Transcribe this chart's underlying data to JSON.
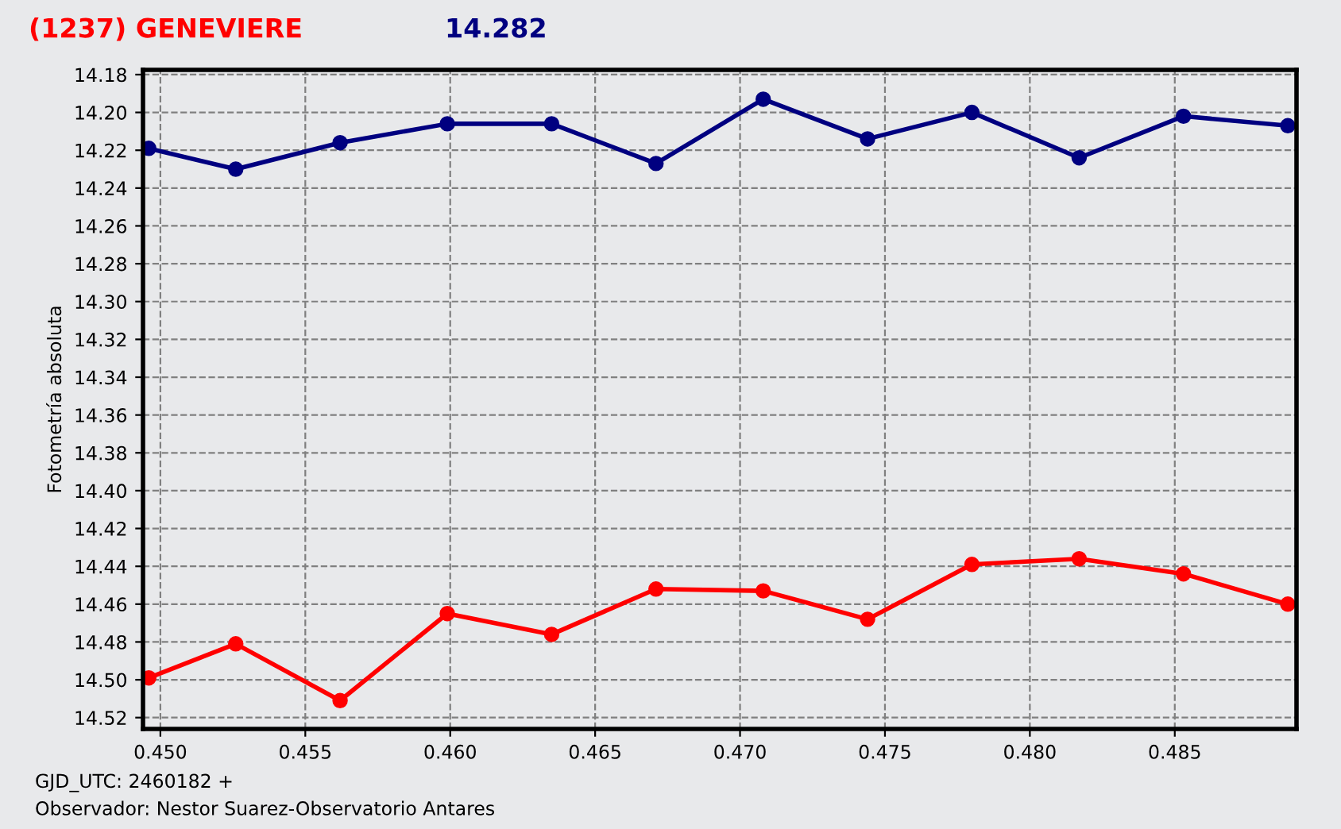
{
  "chart_data": {
    "type": "line",
    "title": "(1237) GENEVIERE",
    "subtitle": "14.282",
    "ylabel": "Fotometría absoluta",
    "annotations": [
      "GJD_UTC: 2460182 +",
      "Observador: Nestor Suarez-Observatorio Antares"
    ],
    "x": [
      0.4496,
      0.4526,
      0.4562,
      0.4599,
      0.4635,
      0.4671,
      0.4708,
      0.4744,
      0.478,
      0.4817,
      0.4853,
      0.4889
    ],
    "series": [
      {
        "color": "#000080",
        "values": [
          14.219,
          14.23,
          14.216,
          14.206,
          14.206,
          14.227,
          14.193,
          14.214,
          14.2,
          14.224,
          14.202,
          14.207
        ]
      },
      {
        "color": "#ff0000",
        "values": [
          14.499,
          14.481,
          14.511,
          14.465,
          14.476,
          14.452,
          14.453,
          14.468,
          14.439,
          14.436,
          14.444,
          14.46
        ]
      }
    ],
    "xlim": [
      0.4494,
      0.4892
    ],
    "ylim": [
      14.526,
      14.1775
    ],
    "xticks": [
      {
        "value": 0.45,
        "label": "0.450"
      },
      {
        "value": 0.455,
        "label": "0.455"
      },
      {
        "value": 0.46,
        "label": "0.460"
      },
      {
        "value": 0.465,
        "label": "0.465"
      },
      {
        "value": 0.47,
        "label": "0.470"
      },
      {
        "value": 0.475,
        "label": "0.475"
      },
      {
        "value": 0.48,
        "label": "0.480"
      },
      {
        "value": 0.485,
        "label": "0.485"
      }
    ],
    "yticks": [
      14.18,
      {
        "value": 14.2,
        "label": "14.20"
      },
      14.22,
      14.24,
      14.26,
      14.28,
      {
        "value": 14.3,
        "label": "14.30"
      },
      14.32,
      14.34,
      14.36,
      14.38,
      {
        "value": 14.4,
        "label": "14.40"
      },
      14.42,
      14.44,
      14.46,
      14.48,
      {
        "value": 14.5,
        "label": "14.50"
      },
      14.52
    ],
    "grid": true,
    "marker": "circle",
    "line_style": "solid",
    "legend": false
  }
}
